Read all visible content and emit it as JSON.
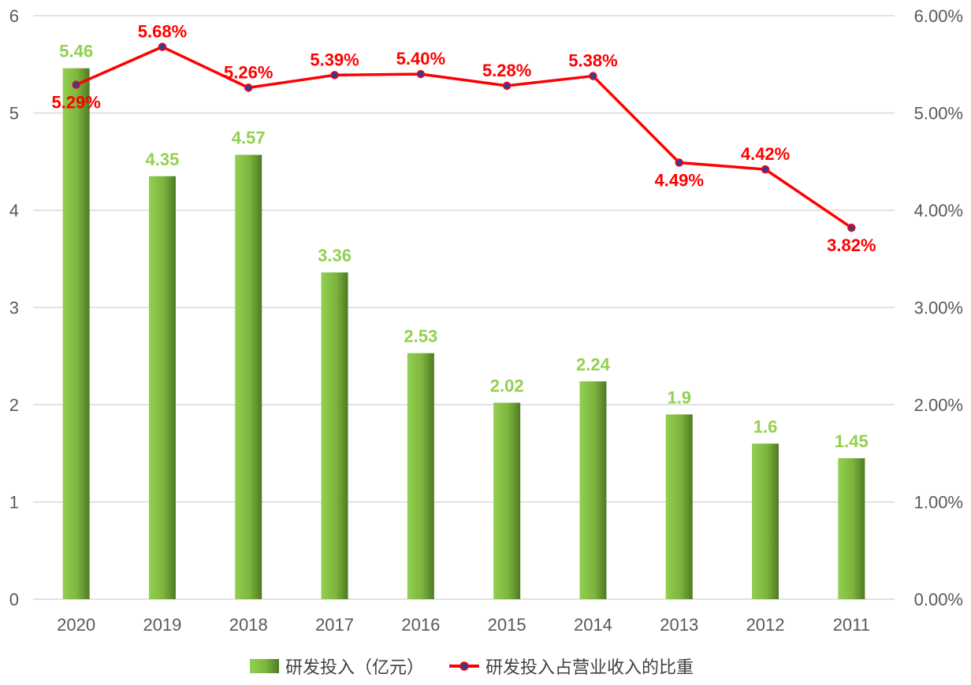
{
  "chart_data": {
    "type": "bar",
    "categories": [
      "2020",
      "2019",
      "2018",
      "2017",
      "2016",
      "2015",
      "2014",
      "2013",
      "2012",
      "2011"
    ],
    "series": [
      {
        "name": "研发投入（亿元）",
        "type": "bar",
        "axis": "left",
        "values": [
          5.46,
          4.35,
          4.57,
          3.36,
          2.53,
          2.02,
          2.24,
          1.9,
          1.6,
          1.45
        ],
        "labels": [
          "5.46",
          "4.35",
          "4.57",
          "3.36",
          "2.53",
          "2.02",
          "2.24",
          "1.9",
          "1.6",
          "1.45"
        ]
      },
      {
        "name": "研发投入占营业收入的比重",
        "type": "line",
        "axis": "right",
        "values": [
          5.29,
          5.68,
          5.26,
          5.39,
          5.4,
          5.28,
          5.38,
          4.49,
          4.42,
          3.82
        ],
        "labels": [
          "5.29%",
          "5.68%",
          "5.26%",
          "5.39%",
          "5.40%",
          "5.28%",
          "5.38%",
          "4.49%",
          "4.42%",
          "3.82%"
        ],
        "label_positions": [
          "below",
          "above",
          "above",
          "above",
          "above",
          "above",
          "above",
          "below",
          "above",
          "below"
        ]
      }
    ],
    "y_left": {
      "ylim": [
        0,
        6
      ],
      "ticks": [
        "0",
        "1",
        "2",
        "3",
        "4",
        "5",
        "6"
      ]
    },
    "y_right": {
      "ylim": [
        0,
        6
      ],
      "ticks": [
        "0.00%",
        "1.00%",
        "2.00%",
        "3.00%",
        "4.00%",
        "5.00%",
        "6.00%"
      ]
    },
    "grid": true,
    "legend_position": "bottom",
    "colors": {
      "bar_light": "#92D050",
      "bar_dark": "#4E7A22",
      "bar_label": "#92D050",
      "line": "#FF0000",
      "line_label": "#FF0000",
      "marker_fill": "#3A3A9A",
      "marker_stroke": "#FF0000",
      "grid": "#D9D9D9",
      "axis_text": "#595959"
    },
    "title": "",
    "xlabel": "",
    "ylabel": ""
  }
}
